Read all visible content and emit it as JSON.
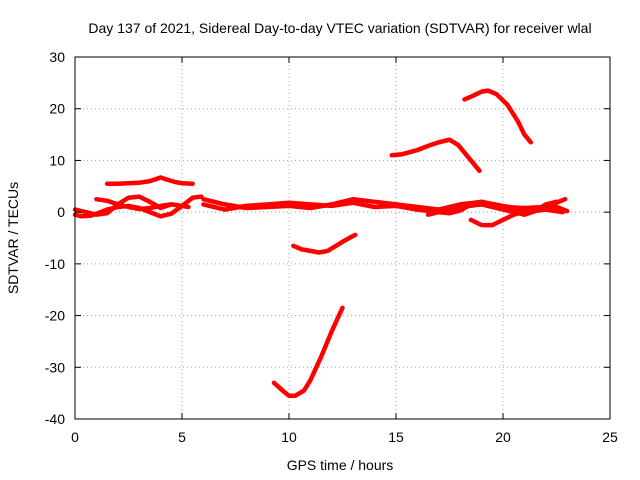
{
  "chart_data": {
    "type": "line",
    "title": "Day 137 of 2021, Sidereal Day-to-day VTEC variation (SDTVAR) for receiver wlal",
    "xlabel": "GPS time / hours",
    "ylabel": "SDTVAR / TECUs",
    "xlim": [
      0,
      25
    ],
    "ylim": [
      -40,
      30
    ],
    "xticks": [
      0,
      5,
      10,
      15,
      20,
      25
    ],
    "yticks": [
      -40,
      -30,
      -20,
      -10,
      0,
      10,
      20,
      30
    ],
    "xtick_labels": [
      "0",
      "5",
      "10",
      "15",
      "20",
      "25"
    ],
    "ytick_labels": [
      "-40",
      "-30",
      "-20",
      "-10",
      "0",
      "10",
      "20",
      "30"
    ],
    "grid": true,
    "series_color": "#ff0000",
    "series": [
      {
        "name": "arc-upper-left",
        "x": [
          1.5,
          2.0,
          2.5,
          3.0,
          3.5,
          4.0,
          4.3,
          4.7,
          5.0,
          5.5
        ],
        "y": [
          5.5,
          5.5,
          5.6,
          5.7,
          6.0,
          6.7,
          6.3,
          5.8,
          5.6,
          5.5
        ]
      },
      {
        "name": "arc-low-left",
        "x": [
          0.0,
          0.3,
          0.7,
          1.0,
          1.5,
          2.0,
          2.5,
          3.0,
          3.5,
          4.0,
          4.5,
          5.0,
          5.5,
          5.9
        ],
        "y": [
          -0.5,
          -0.8,
          -0.7,
          -0.3,
          0.5,
          1.0,
          1.2,
          0.8,
          0.0,
          -0.8,
          -0.3,
          1.2,
          2.8,
          3.0
        ]
      },
      {
        "name": "arc-left-b",
        "x": [
          0.0,
          0.5,
          1.0,
          1.5,
          2.0,
          2.5,
          3.0,
          3.5,
          4.0,
          4.5
        ],
        "y": [
          0.5,
          0.0,
          -0.5,
          -0.2,
          1.5,
          2.8,
          3.0,
          2.0,
          0.8,
          1.5
        ]
      },
      {
        "name": "arc-left-c",
        "x": [
          1.0,
          1.5,
          2.0,
          2.5,
          3.0,
          3.5,
          4.0,
          4.5,
          5.0,
          5.3
        ],
        "y": [
          2.5,
          2.2,
          1.5,
          1.0,
          0.6,
          0.8,
          1.2,
          1.5,
          1.2,
          1.0
        ]
      },
      {
        "name": "arc-mid",
        "x": [
          6.0,
          7.0,
          8.0,
          9.0,
          10.0,
          11.0,
          12.0,
          13.0,
          14.0,
          15.0,
          16.0,
          17.0,
          18.0,
          19.0,
          20.0,
          21.0,
          22.0,
          22.9
        ],
        "y": [
          1.5,
          0.5,
          1.2,
          1.5,
          1.8,
          1.5,
          1.2,
          1.8,
          1.0,
          1.2,
          0.5,
          0.5,
          1.0,
          1.5,
          1.0,
          0.8,
          1.0,
          2.5
        ]
      },
      {
        "name": "arc-mid-b",
        "x": [
          6.0,
          7.0,
          8.0,
          9.0,
          10.0,
          11.0,
          12.0,
          13.0,
          14.0,
          15.0,
          16.0,
          17.0,
          18.0,
          19.0,
          20.0,
          21.0,
          22.0,
          22.8
        ],
        "y": [
          2.5,
          1.5,
          0.8,
          1.0,
          1.2,
          0.8,
          1.5,
          2.5,
          2.0,
          1.5,
          1.0,
          0.5,
          1.5,
          2.0,
          1.2,
          0.5,
          0.5,
          0.3
        ]
      },
      {
        "name": "arc-right-low",
        "x": [
          15.0,
          16.0,
          17.0,
          17.5,
          18.0,
          18.5,
          19.0,
          20.0,
          21.0,
          22.0,
          22.8
        ],
        "y": [
          1.5,
          0.5,
          0.0,
          -0.2,
          0.3,
          1.5,
          2.0,
          1.0,
          0.0,
          0.5,
          0.0
        ]
      },
      {
        "name": "arc-right-dip",
        "x": [
          18.5,
          19.0,
          19.5,
          20.0,
          20.5,
          21.0,
          21.5,
          22.0,
          22.5,
          23.0
        ],
        "y": [
          -1.5,
          -2.5,
          -2.5,
          -1.5,
          -0.5,
          0.2,
          0.5,
          1.0,
          1.0,
          0.2
        ]
      },
      {
        "name": "arc-right-c",
        "x": [
          16.5,
          17.0,
          17.5,
          18.0,
          18.5,
          19.0,
          19.5,
          20.0,
          20.5,
          21.0,
          21.5,
          22.0,
          22.5
        ],
        "y": [
          -0.5,
          0.0,
          0.5,
          1.0,
          1.5,
          1.5,
          1.0,
          0.5,
          0.0,
          -0.5,
          0.2,
          1.5,
          2.0
        ]
      },
      {
        "name": "arc-hump-15-18",
        "x": [
          14.8,
          15.3,
          16.0,
          16.5,
          17.0,
          17.5,
          17.9,
          18.4,
          18.9
        ],
        "y": [
          11.0,
          11.2,
          12.0,
          12.8,
          13.5,
          14.0,
          13.0,
          10.5,
          8.0
        ]
      },
      {
        "name": "arc-hump-18-21",
        "x": [
          18.2,
          18.6,
          19.0,
          19.3,
          19.7,
          20.2,
          20.7,
          21.0,
          21.3
        ],
        "y": [
          21.8,
          22.5,
          23.3,
          23.5,
          22.8,
          20.8,
          17.5,
          15.0,
          13.5
        ]
      },
      {
        "name": "arc-neg-10-13",
        "x": [
          10.2,
          10.6,
          11.0,
          11.4,
          11.8,
          12.2,
          12.6,
          13.0,
          13.1
        ],
        "y": [
          -6.5,
          -7.2,
          -7.5,
          -7.8,
          -7.5,
          -6.5,
          -5.5,
          -4.6,
          -4.4
        ]
      },
      {
        "name": "arc-deep-9-12",
        "x": [
          9.3,
          9.7,
          10.0,
          10.3,
          10.7,
          11.0,
          11.5,
          12.0,
          12.5
        ],
        "y": [
          -33.0,
          -34.5,
          -35.5,
          -35.5,
          -34.5,
          -32.5,
          -28.0,
          -23.0,
          -18.5
        ]
      }
    ]
  }
}
